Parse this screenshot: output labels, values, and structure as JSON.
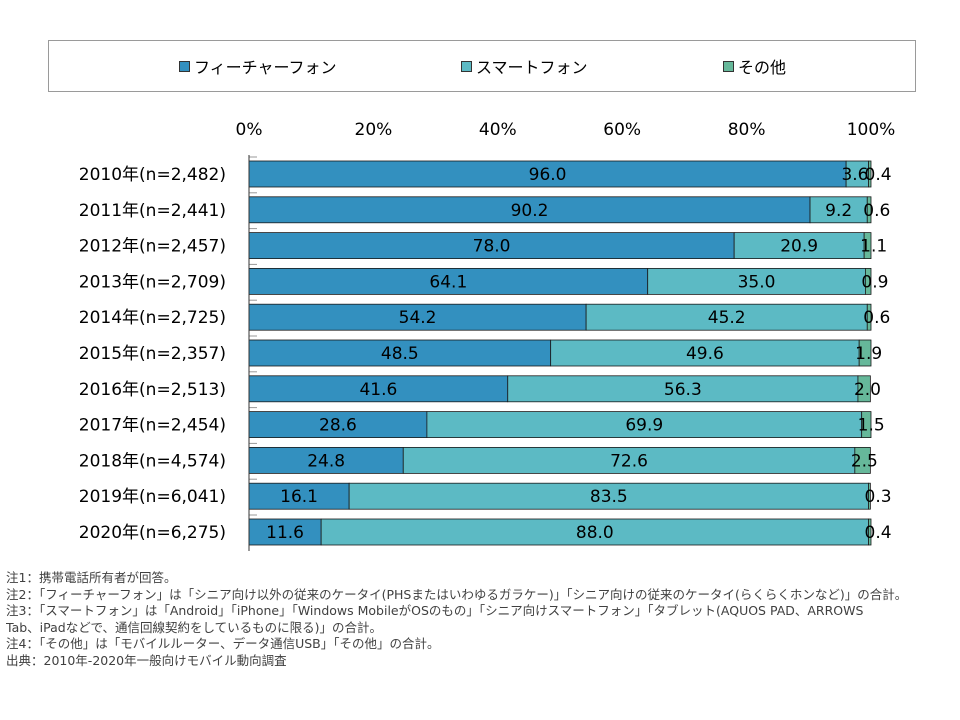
{
  "chart_data": {
    "type": "bar",
    "orientation": "horizontal",
    "stacked": true,
    "percent": true,
    "categories": [
      "2010年(n=2,482)",
      "2011年(n=2,441)",
      "2012年(n=2,457)",
      "2013年(n=2,709)",
      "2014年(n=2,725)",
      "2015年(n=2,357)",
      "2016年(n=2,513)",
      "2017年(n=2,454)",
      "2018年(n=4,574)",
      "2019年(n=6,041)",
      "2020年(n=6,275)"
    ],
    "series": [
      {
        "name": "フィーチャーフォン",
        "color": "#3390bf",
        "values": [
          96.0,
          90.2,
          78.0,
          64.1,
          54.2,
          48.5,
          41.6,
          28.6,
          24.8,
          16.1,
          11.6
        ]
      },
      {
        "name": "スマートフォン",
        "color": "#5cbac4",
        "values": [
          3.6,
          9.2,
          20.9,
          35.0,
          45.2,
          49.6,
          56.3,
          69.9,
          72.6,
          83.5,
          88.0
        ]
      },
      {
        "name": "その他",
        "color": "#66b89a",
        "values": [
          0.4,
          0.6,
          1.1,
          0.9,
          0.6,
          1.9,
          2.0,
          1.5,
          2.5,
          0.3,
          0.4
        ]
      }
    ],
    "value_labels": [
      [
        "96.0",
        "3.6",
        "0.4"
      ],
      [
        "90.2",
        "9.2",
        "0.6"
      ],
      [
        "78.0",
        "20.9",
        "1.1"
      ],
      [
        "64.1",
        "35.0",
        "0.9"
      ],
      [
        "54.2",
        "45.2",
        "0.6"
      ],
      [
        "48.5",
        "49.6",
        "1.9"
      ],
      [
        "41.6",
        "56.3",
        "2.0"
      ],
      [
        "28.6",
        "69.9",
        "1.5"
      ],
      [
        "24.8",
        "72.6",
        "2.5"
      ],
      [
        "16.1",
        "83.5",
        "0.3"
      ],
      [
        "11.6",
        "88.0",
        "0.4"
      ]
    ],
    "xticks": [
      "0%",
      "20%",
      "40%",
      "60%",
      "80%",
      "100%"
    ],
    "xlim": [
      0,
      100
    ],
    "legend_position": "top",
    "grid": false
  },
  "notes": [
    "注1：携帯電話所有者が回答。",
    "注2：「フィーチャーフォン」は「シニア向け以外の従来のケータイ(PHSまたはいわゆるガラケー)」「シニア向けの従来のケータイ(らくらくホンなど)」の合計。",
    "注3：「スマートフォン」は「Android」「iPhone」「Windows MobileがOSのもの」「シニア向けスマートフォン」「タブレット(AQUOS PAD、ARROWS",
    "Tab、iPadなどで、通信回線契約をしているものに限る)」の合計。",
    "注4：「その他」は「モバイルルーター、データ通信USB」「その他」の合計。",
    "出典：2010年-2020年一般向けモバイル動向調査"
  ]
}
